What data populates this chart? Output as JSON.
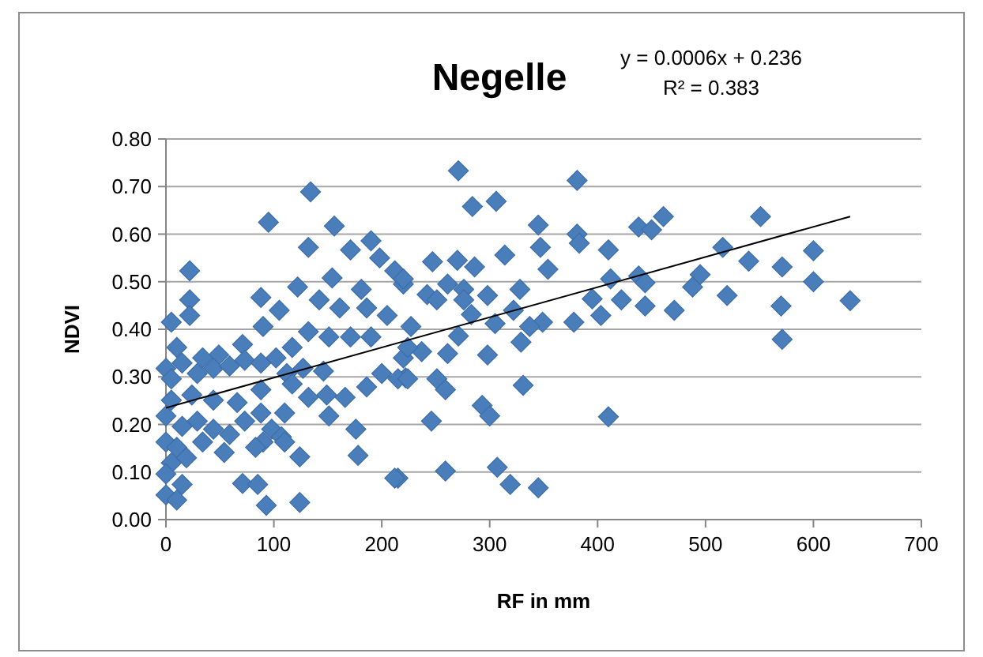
{
  "chart_data": {
    "type": "scatter",
    "title": "Negelle",
    "xlabel": "RF in mm",
    "ylabel": "NDVI",
    "annotations": [
      "y = 0.0006x + 0.236",
      "R² = 0.383"
    ],
    "xlim": [
      0,
      700
    ],
    "xticks": [
      0,
      100,
      200,
      300,
      400,
      500,
      600,
      700
    ],
    "ylim": [
      0,
      0.8
    ],
    "yticks": [
      {
        "value": 0,
        "label": "0.00"
      },
      {
        "value": 0.1,
        "label": "0.10"
      },
      {
        "value": 0.2,
        "label": "0.20"
      },
      {
        "value": 0.3,
        "label": "0.30"
      },
      {
        "value": 0.4,
        "label": "0.40"
      },
      {
        "value": 0.5,
        "label": "0.50"
      },
      {
        "value": 0.6,
        "label": "0.60"
      },
      {
        "value": 0.7,
        "label": "0.70"
      },
      {
        "value": 0.8,
        "label": "0.80"
      }
    ],
    "grid": "y",
    "marker": "diamond",
    "series": [
      {
        "color": "#4a7ebb",
        "x": [
          461,
          438,
          450,
          551,
          516,
          600,
          540,
          571,
          600,
          438,
          444,
          495,
          488,
          520,
          444,
          471,
          570,
          634,
          571,
          271,
          381,
          284,
          306,
          345,
          347,
          381,
          383,
          410,
          412,
          314,
          247,
          270,
          286,
          354,
          212,
          220,
          298,
          328,
          242,
          251,
          261,
          276,
          276,
          395,
          422,
          378,
          403,
          283,
          305,
          322,
          349,
          337,
          329,
          271,
          237,
          298,
          261,
          222,
          251,
          259,
          331,
          293,
          300,
          246,
          410,
          215,
          259,
          307,
          319,
          345,
          134,
          95,
          156,
          132,
          171,
          190,
          198,
          22,
          22,
          22,
          5,
          122,
          154,
          88,
          105,
          90,
          142,
          161,
          181,
          186,
          205,
          220,
          227,
          132,
          151,
          171,
          190,
          117,
          71,
          49,
          34,
          10,
          0,
          5,
          15,
          29,
          44,
          59,
          73,
          88,
          102,
          112,
          127,
          146,
          117,
          132,
          149,
          166,
          186,
          200,
          220,
          215,
          224,
          88,
          66,
          44,
          24,
          5,
          0,
          15,
          29,
          44,
          59,
          73,
          88,
          98,
          107,
          110,
          90,
          83,
          0,
          10,
          34,
          54,
          5,
          19,
          0,
          15,
          0,
          10,
          71,
          85,
          93,
          124,
          124,
          176,
          178,
          151,
          110,
          212,
          224
        ],
        "values": [
          0.637,
          0.615,
          0.609,
          0.637,
          0.572,
          0.565,
          0.543,
          0.531,
          0.5,
          0.512,
          0.498,
          0.515,
          0.489,
          0.471,
          0.449,
          0.44,
          0.449,
          0.46,
          0.379,
          0.733,
          0.713,
          0.658,
          0.669,
          0.619,
          0.572,
          0.6,
          0.581,
          0.567,
          0.506,
          0.556,
          0.542,
          0.545,
          0.531,
          0.526,
          0.523,
          0.495,
          0.471,
          0.484,
          0.473,
          0.462,
          0.495,
          0.484,
          0.462,
          0.464,
          0.462,
          0.415,
          0.429,
          0.431,
          0.412,
          0.44,
          0.415,
          0.406,
          0.373,
          0.386,
          0.353,
          0.346,
          0.349,
          0.298,
          0.296,
          0.273,
          0.282,
          0.24,
          0.218,
          0.207,
          0.216,
          0.087,
          0.102,
          0.11,
          0.074,
          0.067,
          0.689,
          0.625,
          0.617,
          0.572,
          0.567,
          0.586,
          0.55,
          0.523,
          0.462,
          0.429,
          0.415,
          0.489,
          0.508,
          0.467,
          0.44,
          0.406,
          0.462,
          0.445,
          0.484,
          0.445,
          0.429,
          0.506,
          0.406,
          0.395,
          0.384,
          0.384,
          0.384,
          0.362,
          0.368,
          0.346,
          0.34,
          0.362,
          0.318,
          0.296,
          0.329,
          0.307,
          0.318,
          0.323,
          0.335,
          0.329,
          0.34,
          0.307,
          0.318,
          0.312,
          0.285,
          0.257,
          0.262,
          0.257,
          0.279,
          0.307,
          0.34,
          0.296,
          0.296,
          0.273,
          0.246,
          0.251,
          0.262,
          0.251,
          0.218,
          0.196,
          0.207,
          0.19,
          0.179,
          0.207,
          0.224,
          0.19,
          0.174,
          0.163,
          0.163,
          0.152,
          0.163,
          0.152,
          0.163,
          0.141,
          0.119,
          0.13,
          0.096,
          0.074,
          0.052,
          0.041,
          0.076,
          0.074,
          0.03,
          0.036,
          0.132,
          0.19,
          0.135,
          0.218,
          0.224,
          0.087,
          0.362
        ]
      },
      {
        "type": "line",
        "color": "#000000",
        "line_style": "solid",
        "marker": "none",
        "x": [
          0,
          634
        ],
        "values": [
          0.235,
          0.637
        ]
      }
    ]
  }
}
